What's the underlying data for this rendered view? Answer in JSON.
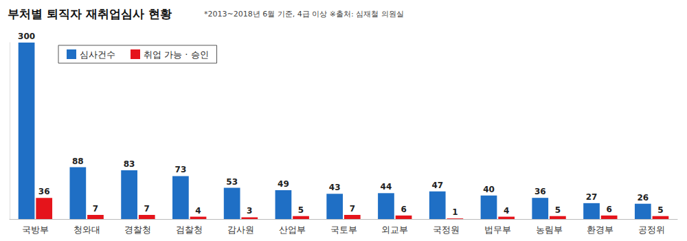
{
  "chart_data": {
    "type": "bar",
    "title": "부처별 퇴직자 재취업심사 현황",
    "subtitle": "*2013~2018년 6월 기준, 4급 이상 ※출처: 심재철 의원실",
    "categories": [
      "국방부",
      "청와대",
      "경찰청",
      "검찰청",
      "감사원",
      "산업부",
      "국토부",
      "외교부",
      "국정원",
      "법무부",
      "농림부",
      "환경부",
      "공정위"
    ],
    "series": [
      {
        "name": "심사건수",
        "color": "#1f6fc5",
        "values": [
          300,
          88,
          83,
          73,
          53,
          49,
          43,
          44,
          47,
          40,
          36,
          27,
          26
        ]
      },
      {
        "name": "취업 가능 · 승인",
        "color": "#e5141b",
        "values": [
          36,
          7,
          7,
          4,
          3,
          5,
          7,
          6,
          1,
          4,
          5,
          6,
          5
        ]
      }
    ],
    "ylim": [
      0,
      300
    ],
    "grid": false,
    "legend": "upper left",
    "data_labels": true,
    "tick_labels": "x"
  }
}
